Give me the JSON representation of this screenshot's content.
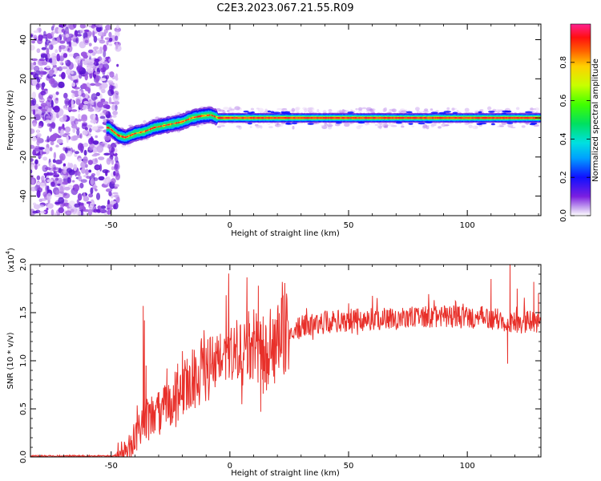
{
  "title": "C2E3.2023.067.21.55.R09",
  "chart_data": [
    {
      "type": "heatmap",
      "xlabel": "Height of straight line (km)",
      "ylabel": "Frequency (Hz)",
      "xlim": [
        -84,
        131
      ],
      "ylim": [
        -50,
        48
      ],
      "xticks": [
        "-50",
        "0",
        "50",
        "100"
      ],
      "xtick_values": [
        -50,
        0,
        50,
        100
      ],
      "yticks": [
        "-40",
        "-20",
        "0",
        "20",
        "40"
      ],
      "ytick_values": [
        -40,
        -20,
        0,
        20,
        40
      ],
      "ridge": {
        "x": [
          -51,
          -47,
          -44,
          -40,
          -36,
          -32,
          -28,
          -24,
          -20,
          -16,
          -12,
          -8,
          -5,
          0,
          131
        ],
        "y": [
          -5,
          -9,
          -10,
          -8,
          -7,
          -5,
          -4,
          -3,
          -2,
          0,
          1,
          1.5,
          0,
          0,
          0
        ]
      },
      "noise_region_x": [
        -84,
        -50
      ],
      "colorbar": {
        "label": "Normalized spectral amplitude",
        "range": [
          0.0,
          1.0
        ],
        "ticks": [
          "0.0",
          "0.2",
          "0.4",
          "0.6",
          "0.8"
        ],
        "tick_values": [
          0.0,
          0.2,
          0.4,
          0.6,
          0.8
        ]
      }
    },
    {
      "type": "line",
      "xlabel": "Height of straight line (km)",
      "ylabel": "SNR (10 * v/v)",
      "multiplier_label": "(x10",
      "multiplier_exponent": "4",
      "multiplier_close": ")",
      "color": "#e8302a",
      "xlim": [
        -84,
        131
      ],
      "ylim": [
        0,
        2.0
      ],
      "xticks": [
        "-50",
        "0",
        "50",
        "100"
      ],
      "xtick_values": [
        -50,
        0,
        50,
        100
      ],
      "yticks": [
        "0.0",
        "0.5",
        "1.0",
        "1.5",
        "2.0"
      ],
      "ytick_values": [
        0.0,
        0.5,
        1.0,
        1.5,
        2.0
      ],
      "trend": {
        "x": [
          -84,
          -50,
          -46,
          -42,
          -40,
          -38,
          -36,
          -34,
          -30,
          -26,
          -22,
          -18,
          -14,
          -10,
          -6,
          -2,
          2,
          6,
          10,
          14,
          18,
          22,
          26,
          30,
          40,
          50,
          60,
          70,
          80,
          90,
          100,
          110,
          120,
          131
        ],
        "y": [
          0.01,
          0.01,
          0.03,
          0.1,
          0.2,
          0.3,
          0.45,
          0.35,
          0.45,
          0.55,
          0.65,
          0.75,
          0.85,
          0.9,
          0.95,
          1.0,
          1.05,
          1.1,
          1.15,
          1.0,
          1.1,
          1.25,
          1.3,
          1.35,
          1.4,
          1.42,
          1.43,
          1.44,
          1.45,
          1.46,
          1.45,
          1.44,
          1.4,
          1.4
        ]
      },
      "spikes": [
        {
          "x": -36.5,
          "y": 1.57
        },
        {
          "x": -36,
          "y": 1.42
        },
        {
          "x": -35.3,
          "y": 0.95
        },
        {
          "x": -26.5,
          "y": 0.92
        },
        {
          "x": -22,
          "y": 0.97
        },
        {
          "x": -20,
          "y": 1.1
        },
        {
          "x": -18,
          "y": 1.02
        },
        {
          "x": -10,
          "y": 1.12
        },
        {
          "x": -4,
          "y": 1.28
        },
        {
          "x": 0,
          "y": 1.15
        },
        {
          "x": 12,
          "y": 1.78
        },
        {
          "x": 14,
          "y": 1.46
        },
        {
          "x": 13,
          "y": 0.47
        },
        {
          "x": 65,
          "y": 1.55
        },
        {
          "x": 95,
          "y": 1.62
        },
        {
          "x": 110,
          "y": 1.85
        },
        {
          "x": 118,
          "y": 2.0
        },
        {
          "x": 121,
          "y": 1.75
        },
        {
          "x": 117,
          "y": 0.97
        },
        {
          "x": 128,
          "y": 1.82
        },
        {
          "x": 130,
          "y": 1.7
        }
      ]
    }
  ]
}
